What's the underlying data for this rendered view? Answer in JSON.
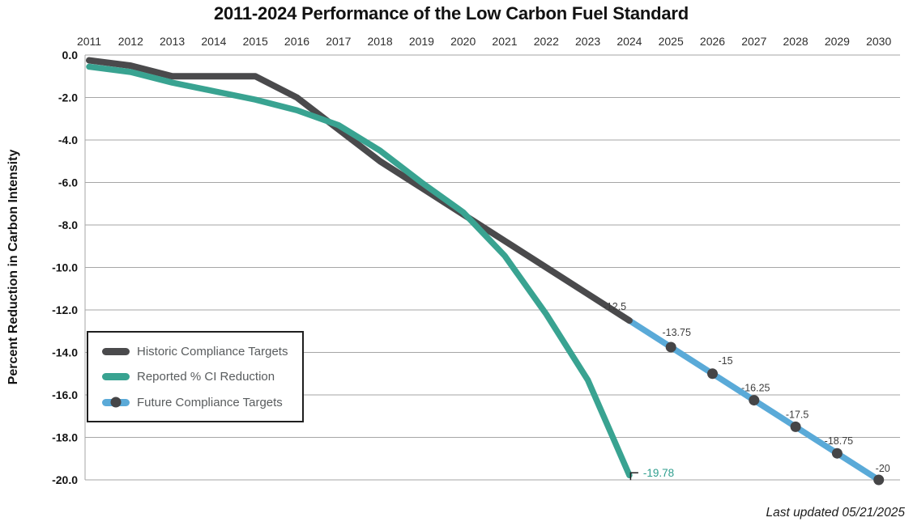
{
  "chart_data": {
    "type": "line",
    "title": "2011-2024 Performance of the Low Carbon Fuel Standard",
    "ylabel": "Percent Reduction in Carbon Intensity",
    "xlabel": "",
    "footnote": "Last updated 05/21/2025",
    "ylim": [
      -20,
      0
    ],
    "grid": true,
    "legend_position": "middle-left",
    "x_ticks": [
      "2011",
      "2012",
      "2013",
      "2014",
      "2015",
      "2016",
      "2017",
      "2018",
      "2019",
      "2020",
      "2021",
      "2022",
      "2023",
      "2024",
      "2025",
      "2026",
      "2027",
      "2028",
      "2029",
      "2030"
    ],
    "y_ticks": [
      "0.0",
      "-2.0",
      "-4.0",
      "-6.0",
      "-8.0",
      "-10.0",
      "-12.0",
      "-14.0",
      "-16.0",
      "-18.0",
      "-20.0"
    ],
    "series": [
      {
        "name": "Historic Compliance Targets",
        "color": "#4a4a4c",
        "x": [
          2011,
          2012,
          2013,
          2014,
          2015,
          2016,
          2017,
          2018,
          2019,
          2020,
          2021,
          2022,
          2023,
          2024
        ],
        "y": [
          -0.25,
          -0.5,
          -1.0,
          -1.0,
          -1.0,
          -2.0,
          -3.5,
          -5.0,
          -6.25,
          -7.5,
          -8.75,
          -10.0,
          -11.25,
          -12.5
        ]
      },
      {
        "name": "Reported % CI Reduction",
        "color": "#39a391",
        "x": [
          2011,
          2012,
          2013,
          2014,
          2015,
          2016,
          2017,
          2018,
          2019,
          2020,
          2021,
          2022,
          2023,
          2024
        ],
        "y": [
          -0.55,
          -0.8,
          -1.3,
          -1.7,
          -2.1,
          -2.6,
          -3.3,
          -4.5,
          -6.0,
          -7.4,
          -9.45,
          -12.2,
          -15.3,
          -19.78
        ],
        "end_label": "-19.78",
        "end_label_color": "#2f9e8e"
      },
      {
        "name": "Future Compliance Targets",
        "color": "#5aaad8",
        "marker_color": "#454547",
        "x": [
          2024,
          2025,
          2026,
          2027,
          2028,
          2029,
          2030
        ],
        "y": [
          -12.5,
          -13.75,
          -15.0,
          -16.25,
          -17.5,
          -18.75,
          -20.0
        ],
        "point_labels": [
          "-12.5",
          "-13.75",
          "-15",
          "-16.25",
          "-17.5",
          "-18.75",
          "-20"
        ]
      }
    ]
  }
}
